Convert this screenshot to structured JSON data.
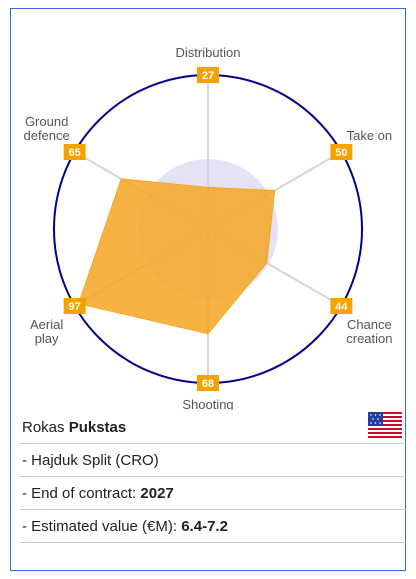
{
  "player": {
    "first_name": "Rokas",
    "last_name": "Pukstas",
    "flag_icon": "usa-flag-icon",
    "club": "- Hajduk Split (CRO)",
    "contract_label": "- End of contract: ",
    "contract_value": "2027",
    "value_label": "- Estimated value (€M): ",
    "value_range": "6.4-7.2"
  },
  "colors": {
    "circle": "#00008b",
    "polygon": "#f5a623",
    "value_box": "#f3a200",
    "inner_disc": "#e3e3f5",
    "border": "#2f6fd6"
  },
  "chart_data": {
    "type": "radar",
    "max": 100,
    "axes": [
      {
        "label": [
          "Distribution"
        ],
        "value": 27
      },
      {
        "label": [
          "Take on"
        ],
        "value": 50
      },
      {
        "label": [
          "Chance",
          "creation"
        ],
        "value": 44
      },
      {
        "label": [
          "Shooting"
        ],
        "value": 68
      },
      {
        "label": [
          "Aerial",
          "play"
        ],
        "value": 97
      },
      {
        "label": [
          "Ground",
          "defence"
        ],
        "value": 65
      }
    ]
  }
}
